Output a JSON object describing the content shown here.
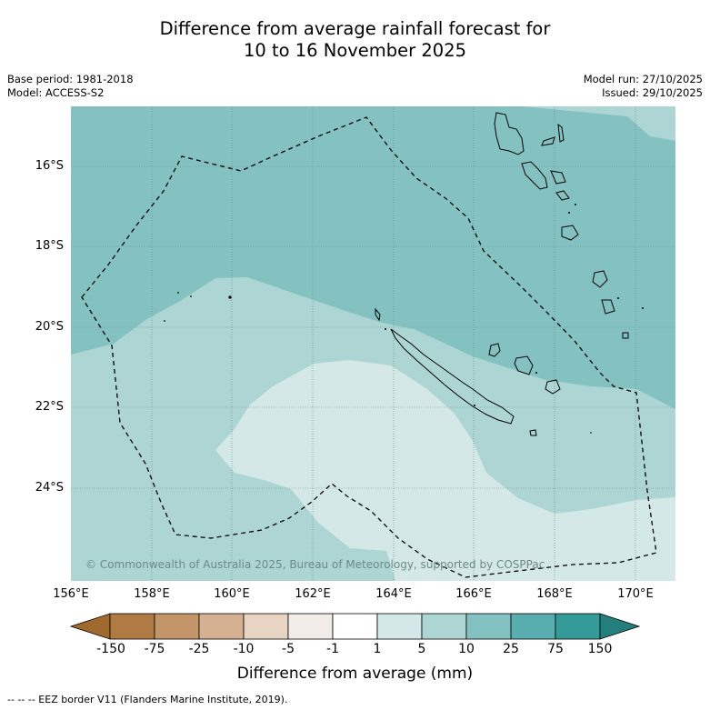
{
  "title": {
    "line1": "Difference from average rainfall forecast for",
    "line2": "10 to 16 November 2025"
  },
  "meta": {
    "base_period": "Base period: 1981-2018",
    "model": "Model: ACCESS-S2",
    "model_run": "Model run: 27/10/2025",
    "issued": "Issued: 29/10/2025"
  },
  "map": {
    "lat_labels": [
      "16°S",
      "18°S",
      "20°S",
      "22°S",
      "24°S"
    ],
    "lon_labels": [
      "156°E",
      "158°E",
      "160°E",
      "162°E",
      "164°E",
      "166°E",
      "168°E",
      "170°E"
    ],
    "copyright": "© Commonwealth of Australia 2025, Bureau of Meteorology, supported by COSPPac",
    "colors": {
      "band_1_5": "#d4e8e7",
      "band_5_10": "#acd5d4",
      "band_10_25": "#84c2c1",
      "land_outline": "#000000"
    }
  },
  "colorbar": {
    "labels": [
      "-150",
      "-75",
      "-25",
      "-10",
      "-5",
      "-1",
      "1",
      "5",
      "10",
      "25",
      "75",
      "150"
    ],
    "colors": [
      "#a0692e",
      "#b07a45",
      "#c5956a",
      "#d6b191",
      "#e7d4c2",
      "#f1ece8",
      "#ffffff",
      "#d4e8e7",
      "#acd5d4",
      "#84c2c1",
      "#58aeae",
      "#359b98",
      "#247e7c"
    ],
    "title": "Difference from average (mm)"
  },
  "footnote": "-- -- -- EEZ border V11 (Flanders Marine Institute, 2019)."
}
